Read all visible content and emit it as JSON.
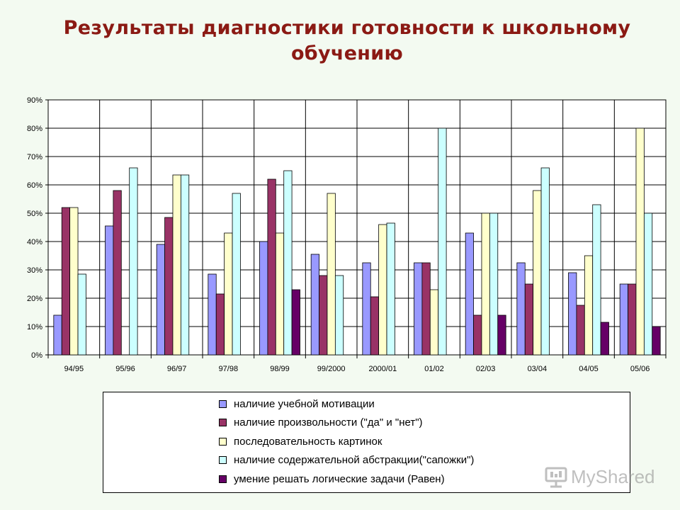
{
  "title": "Результаты диагностики готовности к школьному обучению",
  "chart_data": {
    "type": "bar",
    "categories": [
      "94/95",
      "95/96",
      "96/97",
      "97/98",
      "98/99",
      "99/2000",
      "2000/01",
      "01/02",
      "02/03",
      "03/04",
      "04/05",
      "05/06"
    ],
    "ylim": [
      0,
      90
    ],
    "yticks": [
      "0%",
      "10%",
      "20%",
      "30%",
      "40%",
      "50%",
      "60%",
      "70%",
      "80%",
      "90%"
    ],
    "grid": true,
    "legend_position": "bottom",
    "series": [
      {
        "name": "наличие учебной мотивации",
        "color": "#9999ff",
        "values": [
          14,
          45.5,
          39,
          28.5,
          40,
          35.5,
          32.5,
          32.5,
          43,
          32.5,
          29,
          25
        ]
      },
      {
        "name": "наличие произвольности (\"да\" и \"нет\")",
        "color": "#993366",
        "values": [
          52,
          58,
          48.5,
          21.5,
          62,
          28,
          20.5,
          32.5,
          14,
          25,
          17.5,
          25
        ]
      },
      {
        "name": "последовательность картинок",
        "color": "#ffffcc",
        "values": [
          52,
          null,
          63.5,
          43,
          43,
          57,
          46,
          23,
          50,
          58,
          35,
          80
        ]
      },
      {
        "name": "наличие содержательной абстракции(\"сапожки\")",
        "color": "#ccffff",
        "values": [
          28.5,
          66,
          63.5,
          57,
          65,
          28,
          46.5,
          80,
          50,
          66,
          53,
          50
        ]
      },
      {
        "name": "умение решать логические задачи (Равен)",
        "color": "#660066",
        "values": [
          null,
          null,
          null,
          null,
          23,
          null,
          null,
          null,
          14,
          null,
          11.5,
          10
        ]
      }
    ]
  },
  "watermark": {
    "text": "MyShared"
  }
}
